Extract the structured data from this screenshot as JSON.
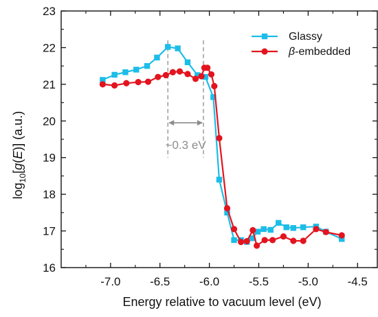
{
  "chart_data": {
    "type": "line",
    "xlabel": "Energy relative to vacuum level (eV)",
    "ylabel_prefix": "log",
    "ylabel_sub": "10",
    "ylabel_open": "[",
    "ylabel_g": "g",
    "ylabel_paren_open": "(",
    "ylabel_E": "E",
    "ylabel_rest": ")] (a.u.)",
    "xlim": [
      -7.5,
      -4.3
    ],
    "ylim": [
      16,
      23
    ],
    "xticks": [
      -7.0,
      -6.5,
      -6.0,
      -5.5,
      -5.0,
      -4.5
    ],
    "xtick_labels": [
      "-7.0",
      "-6.5",
      "-6.0",
      "-5.5",
      "-5.0",
      "-4.5"
    ],
    "yticks": [
      16,
      17,
      18,
      19,
      20,
      21,
      22,
      23
    ],
    "ytick_labels": [
      "16",
      "17",
      "18",
      "19",
      "20",
      "21",
      "22",
      "23"
    ],
    "grid": false,
    "legend_position": "top-right",
    "series": [
      {
        "name": "Glassy",
        "color": "#1cbde8",
        "marker": "square",
        "x": [
          -7.08,
          -6.96,
          -6.85,
          -6.74,
          -6.63,
          -6.53,
          -6.42,
          -6.32,
          -6.22,
          -6.12,
          -6.04,
          -5.96,
          -5.9,
          -5.82,
          -5.75,
          -5.68,
          -5.62,
          -5.57,
          -5.51,
          -5.45,
          -5.38,
          -5.3,
          -5.22,
          -5.15,
          -5.05,
          -4.92,
          -4.82,
          -4.66
        ],
        "values": [
          21.12,
          21.26,
          21.33,
          21.4,
          21.5,
          21.73,
          22.02,
          21.98,
          21.6,
          21.25,
          21.2,
          20.65,
          18.4,
          17.5,
          16.75,
          16.75,
          16.7,
          16.8,
          16.98,
          17.05,
          17.03,
          17.22,
          17.1,
          17.08,
          17.1,
          17.12,
          16.98,
          16.78
        ]
      },
      {
        "name": "β-embedded",
        "name_symbol": "β",
        "name_rest": "-embedded",
        "color": "#e3141f",
        "marker": "circle",
        "x": [
          -7.08,
          -6.96,
          -6.84,
          -6.72,
          -6.62,
          -6.52,
          -6.44,
          -6.37,
          -6.3,
          -6.22,
          -6.14,
          -6.08,
          -6.05,
          -6.02,
          -5.98,
          -5.95,
          -5.9,
          -5.82,
          -5.75,
          -5.68,
          -5.62,
          -5.56,
          -5.52,
          -5.44,
          -5.36,
          -5.25,
          -5.15,
          -5.05,
          -4.92,
          -4.82,
          -4.66
        ],
        "values": [
          21.0,
          20.97,
          21.03,
          21.06,
          21.07,
          21.2,
          21.25,
          21.33,
          21.35,
          21.28,
          21.15,
          21.22,
          21.45,
          21.45,
          21.27,
          20.95,
          19.53,
          17.62,
          17.05,
          16.7,
          16.72,
          17.02,
          16.6,
          16.75,
          16.75,
          16.85,
          16.73,
          16.73,
          17.05,
          16.97,
          16.88
        ]
      }
    ],
    "annotation": {
      "text": "~0.3 eV",
      "color": "#8c8c8c",
      "x1": -6.42,
      "x2": -6.06
    }
  }
}
